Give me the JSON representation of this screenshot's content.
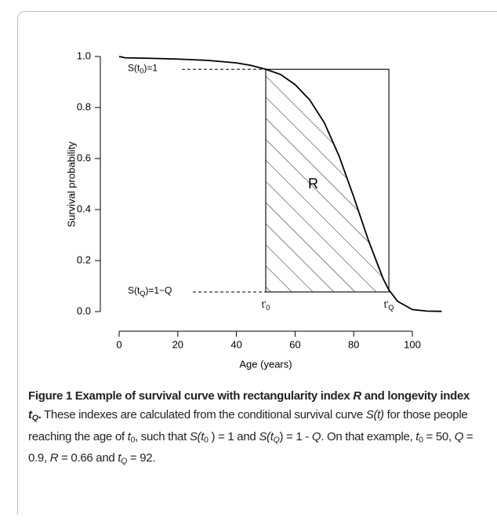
{
  "chart_data": {
    "type": "line",
    "x_label": "Age (years)",
    "y_label": "Survival probability",
    "x": [
      0,
      2,
      10,
      20,
      30,
      40,
      45,
      50,
      55,
      60,
      65,
      70,
      75,
      80,
      85,
      90,
      92,
      95,
      100,
      105,
      110
    ],
    "values": [
      1.0,
      0.995,
      0.993,
      0.99,
      0.985,
      0.975,
      0.965,
      0.95,
      0.93,
      0.89,
      0.83,
      0.74,
      0.61,
      0.45,
      0.28,
      0.13,
      0.085,
      0.04,
      0.008,
      0.002,
      0.001
    ],
    "color": "#000000",
    "xlim": [
      0,
      110
    ],
    "ylim": [
      0,
      1
    ],
    "xticks": [
      0,
      20,
      40,
      60,
      80,
      100
    ],
    "yticks": [
      {
        "value": 0,
        "label": "0.0"
      },
      0.2,
      0.4,
      0.6,
      0.8,
      {
        "value": 1,
        "label": "1.0"
      }
    ],
    "region": {
      "x0": 50,
      "x1": 92,
      "y0": 0.077,
      "y1": 0.95,
      "label": "R"
    },
    "annotations": [
      {
        "x": 50,
        "y": 0.95,
        "parts": [
          {
            "text": "S(t"
          },
          {
            "text": "0",
            "sub": true
          },
          {
            "text": ")=1"
          }
        ]
      },
      {
        "x": 50,
        "y": 0.077,
        "parts": [
          {
            "text": "S(t"
          },
          {
            "text": "Q",
            "sub": true
          },
          {
            "text": ")=1−Q"
          }
        ]
      },
      {
        "x": 50,
        "y": 0.077,
        "parts": [
          {
            "text": "t'"
          },
          {
            "text": "0",
            "sub": true
          }
        ]
      },
      {
        "x": 92,
        "y": 0.077,
        "parts": [
          {
            "text": "t'"
          },
          {
            "text": "Q",
            "sub": true
          }
        ]
      }
    ]
  },
  "caption": {
    "runs": [
      {
        "text": "Figure 1 Example of survival curve with rectangularity index ",
        "style": "bold"
      },
      {
        "text": "R",
        "style": "bold-italic"
      },
      {
        "text": " and longevity index ",
        "style": "bold"
      },
      {
        "text": "t",
        "style": "bold-italic"
      },
      {
        "text": "Q",
        "style": "bold-italic-sub"
      },
      {
        "text": ".",
        "style": "bold"
      },
      {
        "text": " These indexes are calculated from the conditional survival curve ",
        "style": "normal"
      },
      {
        "text": "S(t)",
        "style": "italic"
      },
      {
        "text": " for those people reaching the age of ",
        "style": "normal"
      },
      {
        "text": "t",
        "style": "italic"
      },
      {
        "text": "0",
        "style": "sub"
      },
      {
        "text": ", such that ",
        "style": "normal"
      },
      {
        "text": "S(t",
        "style": "italic"
      },
      {
        "text": "0",
        "style": "sub"
      },
      {
        "text": " ) = 1 and ",
        "style": "normal"
      },
      {
        "text": "S(t",
        "style": "italic"
      },
      {
        "text": "Q",
        "style": "italic-sub"
      },
      {
        "text": ") = 1 - ",
        "style": "normal"
      },
      {
        "text": "Q",
        "style": "italic"
      },
      {
        "text": ". On that example, ",
        "style": "normal"
      },
      {
        "text": "t",
        "style": "italic"
      },
      {
        "text": "0",
        "style": "sub"
      },
      {
        "text": " = 50, ",
        "style": "normal"
      },
      {
        "text": "Q",
        "style": "italic"
      },
      {
        "text": " = 0.9, ",
        "style": "normal"
      },
      {
        "text": "R",
        "style": "italic"
      },
      {
        "text": " = 0.66 and ",
        "style": "normal"
      },
      {
        "text": "t",
        "style": "italic"
      },
      {
        "text": "Q",
        "style": "italic-sub"
      },
      {
        "text": " = 92.",
        "style": "normal"
      }
    ]
  }
}
